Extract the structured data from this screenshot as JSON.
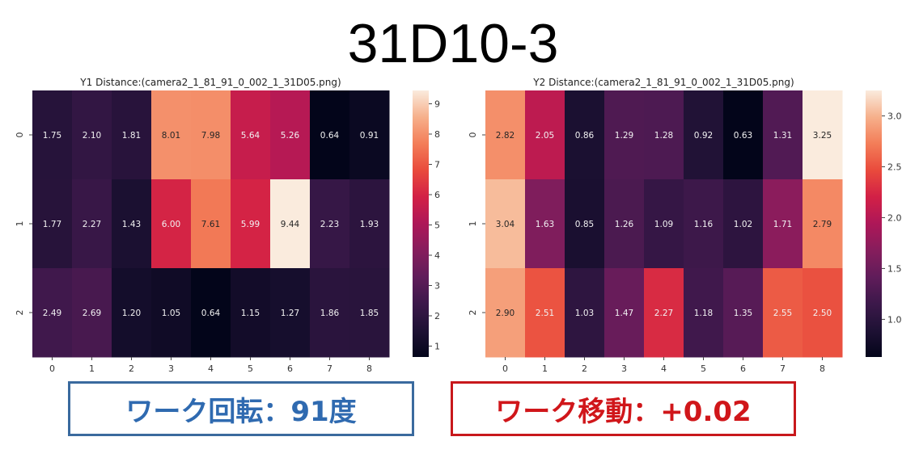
{
  "title": "31D10-3",
  "chart_data": [
    {
      "type": "heatmap",
      "title": "Y1 Distance:(camera2_1_81_91_0_002_1_31D05.png)",
      "x_categories": [
        "0",
        "1",
        "2",
        "3",
        "4",
        "5",
        "6",
        "7",
        "8"
      ],
      "y_categories": [
        "0",
        "1",
        "2"
      ],
      "values": [
        [
          1.75,
          2.1,
          1.81,
          8.01,
          7.98,
          5.64,
          5.26,
          0.64,
          0.91
        ],
        [
          1.77,
          2.27,
          1.43,
          6.0,
          7.61,
          5.99,
          9.44,
          2.23,
          1.93
        ],
        [
          2.49,
          2.69,
          1.2,
          1.05,
          0.64,
          1.15,
          1.27,
          1.86,
          1.85
        ]
      ],
      "value_labels": [
        [
          "1.75",
          "2.10",
          "1.81",
          "8.01",
          "7.98",
          "5.64",
          "5.26",
          "0.64",
          "0.91"
        ],
        [
          "1.77",
          "2.27",
          "1.43",
          "6.00",
          "7.61",
          "5.99",
          "9.44",
          "2.23",
          "1.93"
        ],
        [
          "2.49",
          "2.69",
          "1.20",
          "1.05",
          "0.64",
          "1.15",
          "1.27",
          "1.86",
          "1.85"
        ]
      ],
      "colorbar": {
        "range": [
          0.64,
          9.44
        ],
        "ticks": [
          "1",
          "2",
          "3",
          "4",
          "5",
          "6",
          "7",
          "8",
          "9"
        ],
        "colormap": "rocket"
      }
    },
    {
      "type": "heatmap",
      "title": "Y2 Distance:(camera2_1_81_91_0_002_1_31D05.png)",
      "x_categories": [
        "0",
        "1",
        "2",
        "3",
        "4",
        "5",
        "6",
        "7",
        "8"
      ],
      "y_categories": [
        "0",
        "1",
        "2"
      ],
      "values": [
        [
          2.82,
          2.05,
          0.86,
          1.29,
          1.28,
          0.92,
          0.63,
          1.31,
          3.25
        ],
        [
          3.04,
          1.63,
          0.85,
          1.26,
          1.09,
          1.16,
          1.02,
          1.71,
          2.79
        ],
        [
          2.9,
          2.51,
          1.03,
          1.47,
          2.27,
          1.18,
          1.35,
          2.55,
          2.5
        ]
      ],
      "value_labels": [
        [
          "2.82",
          "2.05",
          "0.86",
          "1.29",
          "1.28",
          "0.92",
          "0.63",
          "1.31",
          "3.25"
        ],
        [
          "3.04",
          "1.63",
          "0.85",
          "1.26",
          "1.09",
          "1.16",
          "1.02",
          "1.71",
          "2.79"
        ],
        [
          "2.90",
          "2.51",
          "1.03",
          "1.47",
          "2.27",
          "1.18",
          "1.35",
          "2.55",
          "2.50"
        ]
      ],
      "colorbar": {
        "range": [
          0.63,
          3.25
        ],
        "ticks": [
          "1.0",
          "1.5",
          "2.0",
          "2.5",
          "3.0"
        ],
        "colormap": "rocket"
      }
    }
  ],
  "captions": {
    "left": "ワーク回転：91度",
    "right": "ワーク移動：+0.02",
    "left_color": "#2f6ab0",
    "right_color": "#d0161a"
  }
}
